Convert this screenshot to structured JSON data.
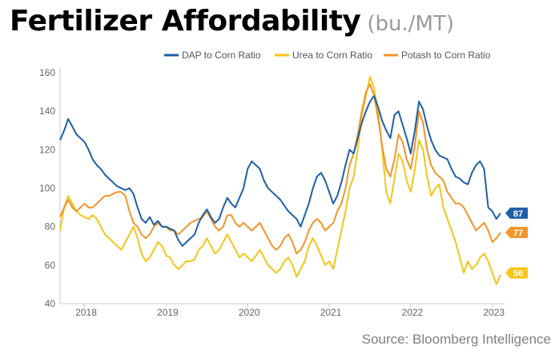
{
  "title": "Fertilizer Affordability",
  "subtitle": "(bu./MT)",
  "source": "Source: Bloomberg Intelligence",
  "chart_data": {
    "type": "line",
    "ylim": [
      40,
      160
    ],
    "yticks": [
      40,
      60,
      80,
      100,
      120,
      140,
      160
    ],
    "xlim": [
      2017.7,
      2023.15
    ],
    "xticks": [
      {
        "label": "2018",
        "x": 2018.0
      },
      {
        "label": "2019",
        "x": 2019.0
      },
      {
        "label": "2020",
        "x": 2020.0
      },
      {
        "label": "2021",
        "x": 2021.0
      },
      {
        "label": "2022",
        "x": 2022.0
      },
      {
        "label": "2023",
        "x": 2023.0
      }
    ],
    "legend_position": "top-right",
    "grid": false,
    "series": [
      {
        "name": "DAP to Corn Ratio",
        "color": "#1f5fa6",
        "end_label": "87",
        "x": [
          2017.7,
          2017.75,
          2017.8,
          2017.85,
          2017.9,
          2017.95,
          2018.0,
          2018.05,
          2018.1,
          2018.15,
          2018.2,
          2018.25,
          2018.3,
          2018.35,
          2018.4,
          2018.45,
          2018.5,
          2018.55,
          2018.6,
          2018.65,
          2018.7,
          2018.75,
          2018.8,
          2018.85,
          2018.9,
          2018.95,
          2019.0,
          2019.05,
          2019.1,
          2019.15,
          2019.2,
          2019.25,
          2019.3,
          2019.35,
          2019.4,
          2019.45,
          2019.5,
          2019.55,
          2019.6,
          2019.65,
          2019.7,
          2019.75,
          2019.8,
          2019.85,
          2019.9,
          2019.95,
          2020.0,
          2020.05,
          2020.1,
          2020.15,
          2020.2,
          2020.25,
          2020.3,
          2020.35,
          2020.4,
          2020.45,
          2020.5,
          2020.55,
          2020.6,
          2020.65,
          2020.7,
          2020.75,
          2020.8,
          2020.85,
          2020.9,
          2020.95,
          2021.0,
          2021.05,
          2021.1,
          2021.15,
          2021.2,
          2021.25,
          2021.3,
          2021.35,
          2021.4,
          2021.45,
          2021.5,
          2021.55,
          2021.6,
          2021.65,
          2021.7,
          2021.75,
          2021.8,
          2021.85,
          2021.9,
          2021.95,
          2022.0,
          2022.05,
          2022.1,
          2022.15,
          2022.2,
          2022.25,
          2022.3,
          2022.35,
          2022.4,
          2022.45,
          2022.5,
          2022.55,
          2022.6,
          2022.65,
          2022.7,
          2022.75,
          2022.8,
          2022.85,
          2022.9,
          2022.95,
          2023.0,
          2023.05,
          2023.1
        ],
        "values": [
          125,
          130,
          136,
          132,
          128,
          126,
          124,
          120,
          115,
          112,
          110,
          107,
          105,
          103,
          101,
          100,
          99,
          100,
          97,
          90,
          84,
          82,
          85,
          81,
          83,
          80,
          80,
          79,
          78,
          73,
          70,
          72,
          74,
          76,
          82,
          86,
          89,
          85,
          82,
          84,
          90,
          95,
          92,
          90,
          95,
          100,
          110,
          114,
          112,
          110,
          104,
          100,
          98,
          96,
          94,
          91,
          88,
          86,
          84,
          80,
          86,
          92,
          100,
          106,
          108,
          104,
          98,
          92,
          96,
          103,
          112,
          120,
          118,
          126,
          134,
          140,
          145,
          148,
          142,
          135,
          130,
          126,
          138,
          140,
          133,
          126,
          118,
          130,
          145,
          141,
          132,
          125,
          120,
          117,
          116,
          115,
          110,
          106,
          105,
          103,
          102,
          108,
          112,
          114,
          110,
          90,
          88,
          84,
          87
        ]
      },
      {
        "name": "Urea to Corn Ratio",
        "color": "#f5c518",
        "end_label": "56",
        "x": [
          2017.7,
          2017.75,
          2017.8,
          2017.85,
          2017.9,
          2017.95,
          2018.0,
          2018.05,
          2018.1,
          2018.15,
          2018.2,
          2018.25,
          2018.3,
          2018.35,
          2018.4,
          2018.45,
          2018.5,
          2018.55,
          2018.6,
          2018.65,
          2018.7,
          2018.75,
          2018.8,
          2018.85,
          2018.9,
          2018.95,
          2019.0,
          2019.05,
          2019.1,
          2019.15,
          2019.2,
          2019.25,
          2019.3,
          2019.35,
          2019.4,
          2019.45,
          2019.5,
          2019.55,
          2019.6,
          2019.65,
          2019.7,
          2019.75,
          2019.8,
          2019.85,
          2019.9,
          2019.95,
          2020.0,
          2020.05,
          2020.1,
          2020.15,
          2020.2,
          2020.25,
          2020.3,
          2020.35,
          2020.4,
          2020.45,
          2020.5,
          2020.55,
          2020.6,
          2020.65,
          2020.7,
          2020.75,
          2020.8,
          2020.85,
          2020.9,
          2020.95,
          2021.0,
          2021.05,
          2021.1,
          2021.15,
          2021.2,
          2021.25,
          2021.3,
          2021.35,
          2021.4,
          2021.45,
          2021.5,
          2021.55,
          2021.6,
          2021.65,
          2021.7,
          2021.75,
          2021.8,
          2021.85,
          2021.9,
          2021.95,
          2022.0,
          2022.05,
          2022.1,
          2022.15,
          2022.2,
          2022.25,
          2022.3,
          2022.35,
          2022.4,
          2022.45,
          2022.5,
          2022.55,
          2022.6,
          2022.65,
          2022.7,
          2022.75,
          2022.8,
          2022.85,
          2022.9,
          2022.95,
          2023.0,
          2023.05,
          2023.1
        ],
        "values": [
          78,
          90,
          96,
          92,
          88,
          86,
          85,
          84,
          86,
          84,
          80,
          76,
          74,
          72,
          70,
          68,
          72,
          76,
          80,
          74,
          66,
          62,
          64,
          68,
          72,
          70,
          65,
          64,
          60,
          58,
          60,
          62,
          62,
          63,
          68,
          70,
          74,
          70,
          66,
          68,
          72,
          76,
          72,
          68,
          64,
          66,
          64,
          62,
          65,
          68,
          64,
          60,
          58,
          56,
          58,
          62,
          64,
          60,
          54,
          58,
          62,
          70,
          74,
          70,
          65,
          60,
          62,
          58,
          68,
          78,
          88,
          100,
          106,
          120,
          138,
          148,
          158,
          152,
          140,
          120,
          98,
          92,
          105,
          118,
          114,
          104,
          98,
          110,
          125,
          120,
          106,
          96,
          100,
          102,
          90,
          84,
          78,
          72,
          64,
          56,
          62,
          58,
          60,
          64,
          66,
          62,
          56,
          50,
          55
        ]
      },
      {
        "name": "Potash to Corn Ratio",
        "color": "#f0962a",
        "end_label": "77",
        "x": [
          2017.7,
          2017.75,
          2017.8,
          2017.85,
          2017.9,
          2017.95,
          2018.0,
          2018.05,
          2018.1,
          2018.15,
          2018.2,
          2018.25,
          2018.3,
          2018.35,
          2018.4,
          2018.45,
          2018.5,
          2018.55,
          2018.6,
          2018.65,
          2018.7,
          2018.75,
          2018.8,
          2018.85,
          2018.9,
          2018.95,
          2019.0,
          2019.05,
          2019.1,
          2019.15,
          2019.2,
          2019.25,
          2019.3,
          2019.35,
          2019.4,
          2019.45,
          2019.5,
          2019.55,
          2019.6,
          2019.65,
          2019.7,
          2019.75,
          2019.8,
          2019.85,
          2019.9,
          2019.95,
          2020.0,
          2020.05,
          2020.1,
          2020.15,
          2020.2,
          2020.25,
          2020.3,
          2020.35,
          2020.4,
          2020.45,
          2020.5,
          2020.55,
          2020.6,
          2020.65,
          2020.7,
          2020.75,
          2020.8,
          2020.85,
          2020.9,
          2020.95,
          2021.0,
          2021.05,
          2021.1,
          2021.15,
          2021.2,
          2021.25,
          2021.3,
          2021.35,
          2021.4,
          2021.45,
          2021.5,
          2021.55,
          2021.6,
          2021.65,
          2021.7,
          2021.75,
          2021.8,
          2021.85,
          2021.9,
          2021.95,
          2022.0,
          2022.05,
          2022.1,
          2022.15,
          2022.2,
          2022.25,
          2022.3,
          2022.35,
          2022.4,
          2022.45,
          2022.5,
          2022.55,
          2022.6,
          2022.65,
          2022.7,
          2022.75,
          2022.8,
          2022.85,
          2022.9,
          2022.95,
          2023.0,
          2023.05,
          2023.1
        ],
        "values": [
          85,
          90,
          94,
          90,
          88,
          90,
          92,
          90,
          90,
          92,
          94,
          96,
          96,
          97,
          98,
          98,
          96,
          88,
          82,
          80,
          76,
          74,
          76,
          80,
          82,
          80,
          80,
          78,
          78,
          76,
          78,
          80,
          82,
          83,
          84,
          85,
          88,
          84,
          80,
          78,
          80,
          86,
          86,
          82,
          80,
          82,
          80,
          78,
          80,
          82,
          78,
          74,
          70,
          68,
          70,
          74,
          76,
          72,
          66,
          68,
          72,
          78,
          82,
          84,
          82,
          78,
          80,
          82,
          88,
          92,
          100,
          112,
          118,
          128,
          140,
          150,
          154,
          148,
          136,
          122,
          110,
          106,
          115,
          128,
          124,
          115,
          110,
          122,
          140,
          134,
          120,
          112,
          108,
          106,
          104,
          98,
          95,
          92,
          92,
          90,
          86,
          82,
          78,
          80,
          82,
          78,
          72,
          74,
          77
        ]
      }
    ]
  }
}
